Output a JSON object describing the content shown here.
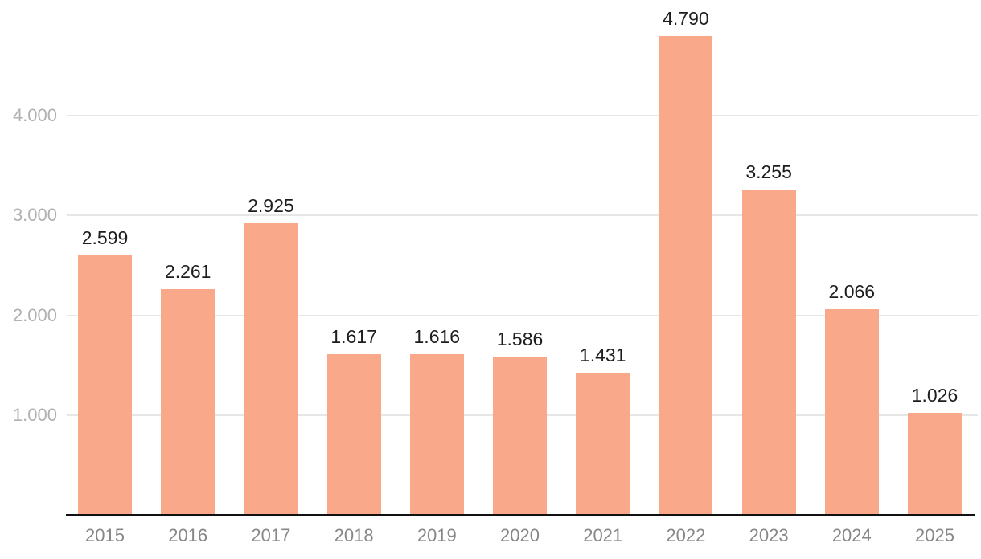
{
  "chart_data": {
    "type": "bar",
    "categories": [
      "2015",
      "2016",
      "2017",
      "2018",
      "2019",
      "2020",
      "2021",
      "2022",
      "2023",
      "2024",
      "2025"
    ],
    "values": [
      2599,
      2261,
      2925,
      1617,
      1616,
      1586,
      1431,
      4790,
      3255,
      2066,
      1026
    ],
    "value_labels": [
      "2.599",
      "2.261",
      "2.925",
      "1.617",
      "1.616",
      "1.586",
      "1.431",
      "4.790",
      "3.255",
      "2.066",
      "1.026"
    ],
    "title": "",
    "xlabel": "",
    "ylabel": "",
    "ylim": [
      0,
      5152
    ],
    "yticks": [
      {
        "value": 1000,
        "label": "1.000"
      },
      {
        "value": 2000,
        "label": "2.000"
      },
      {
        "value": 3000,
        "label": "3.000"
      },
      {
        "value": 4000,
        "label": "4.000"
      }
    ],
    "grid": "horizontal-only",
    "legend": "none",
    "colors": {
      "bar": "#f9a88a",
      "gridline": "#e6e6e6",
      "axis_line": "#111111",
      "y_tick_label": "#b1b1b1",
      "x_tick_label": "#878787",
      "value_label": "#1d1d1d",
      "background": "#ffffff"
    }
  }
}
